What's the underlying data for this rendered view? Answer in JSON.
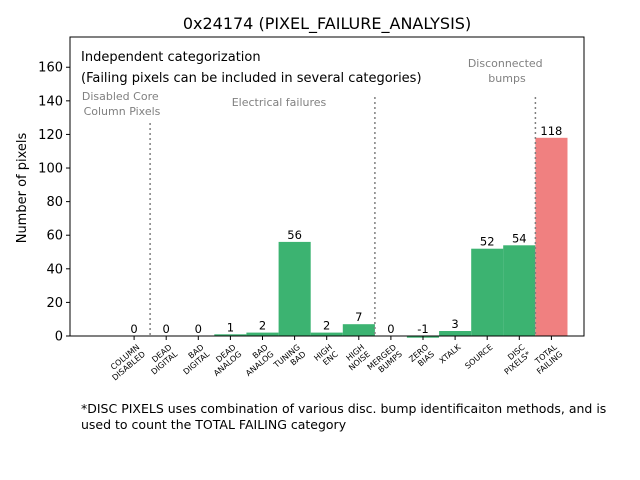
{
  "chart_data": {
    "type": "bar",
    "title": "0x24174 (PIXEL_FAILURE_ANALYSIS)",
    "ylabel": "Number of pixels",
    "xlabel": "",
    "ylim": [
      0,
      178
    ],
    "yticks": [
      0,
      20,
      40,
      60,
      80,
      100,
      120,
      140,
      160
    ],
    "grid": false,
    "categories": [
      "COLUMN DISABLED",
      "DEAD DIGITAL",
      "BAD DIGITAL",
      "DEAD ANALOG",
      "BAD ANALOG",
      "TUNING BAD",
      "HIGH ENC",
      "HIGH NOISE",
      "MERGED BUMPS",
      "ZERO BIAS",
      "XTALK",
      "SOURCE",
      "DISC PIXELS*",
      "TOTAL FAILING"
    ],
    "tick_labels": [
      [
        "COLUMN",
        "DISABLED"
      ],
      [
        "DEAD",
        "DIGITAL"
      ],
      [
        "BAD",
        "DIGITAL"
      ],
      [
        "DEAD",
        "ANALOG"
      ],
      [
        "BAD",
        "ANALOG"
      ],
      [
        "TUNING",
        "BAD"
      ],
      [
        "HIGH",
        "ENC"
      ],
      [
        "HIGH",
        "NOISE"
      ],
      [
        "MERGED",
        "BUMPS"
      ],
      [
        "ZERO",
        "BIAS"
      ],
      [
        "XTALK"
      ],
      [
        "SOURCE"
      ],
      [
        "DISC",
        "PIXELS*"
      ],
      [
        "TOTAL",
        "FAILING"
      ]
    ],
    "values": [
      0,
      0,
      0,
      1,
      2,
      56,
      2,
      7,
      0,
      -1,
      3,
      52,
      54,
      118
    ],
    "data_labels": [
      "0",
      "0",
      "0",
      "1",
      "2",
      "56",
      "2",
      "7",
      "0",
      "-1",
      "3",
      "52",
      "54",
      "118"
    ],
    "bar_colors": [
      "#3cb371",
      "#3cb371",
      "#3cb371",
      "#3cb371",
      "#3cb371",
      "#3cb371",
      "#3cb371",
      "#3cb371",
      "#3cb371",
      "#3cb371",
      "#3cb371",
      "#3cb371",
      "#3cb371",
      "#f08080"
    ],
    "annotations": {
      "heading": "Independent categorization",
      "subheading": "(Failing pixels can be included in several categories)",
      "sections": [
        {
          "lines": [
            "Disabled Core",
            "Column Pixels"
          ]
        },
        {
          "lines": [
            "Electrical failures"
          ]
        },
        {
          "lines": [
            "Disconnected",
            "bumps"
          ]
        }
      ]
    },
    "separators_after_category": [
      0,
      7,
      12
    ]
  },
  "footnote": "*DISC PIXELS uses combination of various disc. bump identificaiton methods, and is used to count the TOTAL FAILING category",
  "colors": {
    "good": "#3cb371",
    "total": "#f08080",
    "annotation": "#808080",
    "separator": "#808080"
  }
}
